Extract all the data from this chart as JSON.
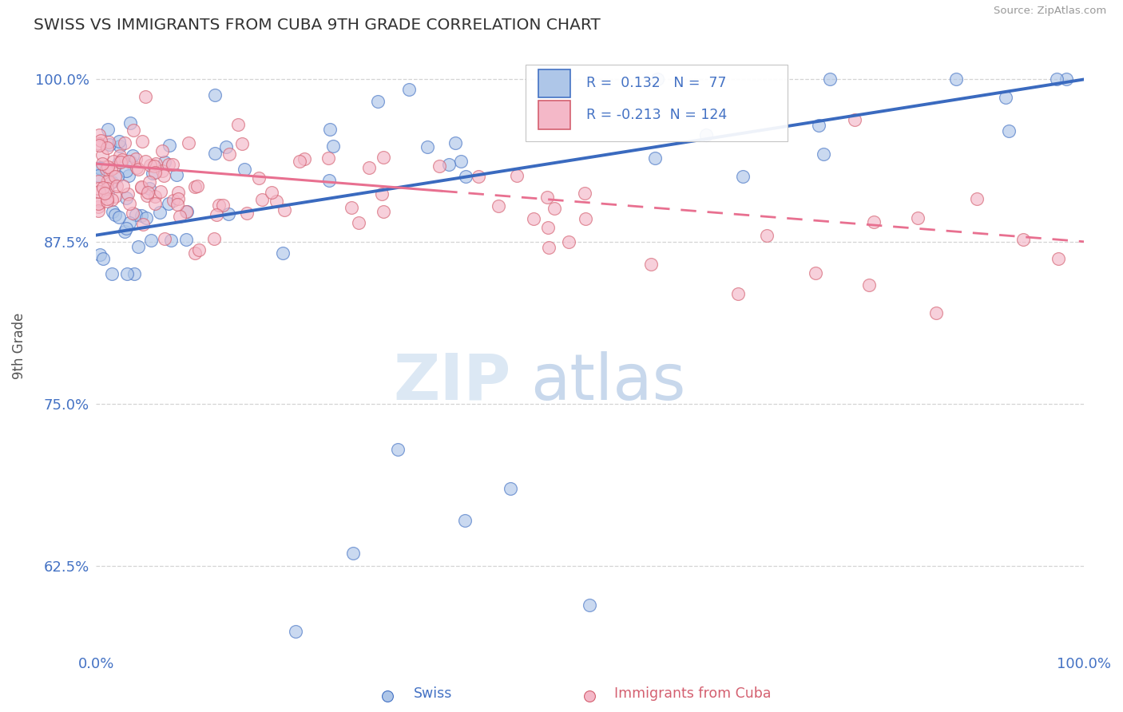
{
  "title": "SWISS VS IMMIGRANTS FROM CUBA 9TH GRADE CORRELATION CHART",
  "source": "Source: ZipAtlas.com",
  "ylabel": "9th Grade",
  "yticks": [
    62.5,
    75.0,
    87.5,
    100.0
  ],
  "xlim": [
    0.0,
    100.0
  ],
  "ylim": [
    56.0,
    103.0
  ],
  "swiss_color": "#aec6e8",
  "swiss_edge_color": "#4472c4",
  "cuba_color": "#f4b8c8",
  "cuba_edge_color": "#d46070",
  "swiss_R": 0.132,
  "swiss_N": 77,
  "cuba_R": -0.213,
  "cuba_N": 124,
  "swiss_line_color": "#3a6abf",
  "cuba_line_color": "#e87090",
  "axis_color": "#4472c4",
  "label_color": "#555555",
  "grid_color": "#d0d0d0",
  "background_color": "#ffffff",
  "watermark_zip_color": "#dce8f4",
  "watermark_atlas_color": "#c8d8ec"
}
